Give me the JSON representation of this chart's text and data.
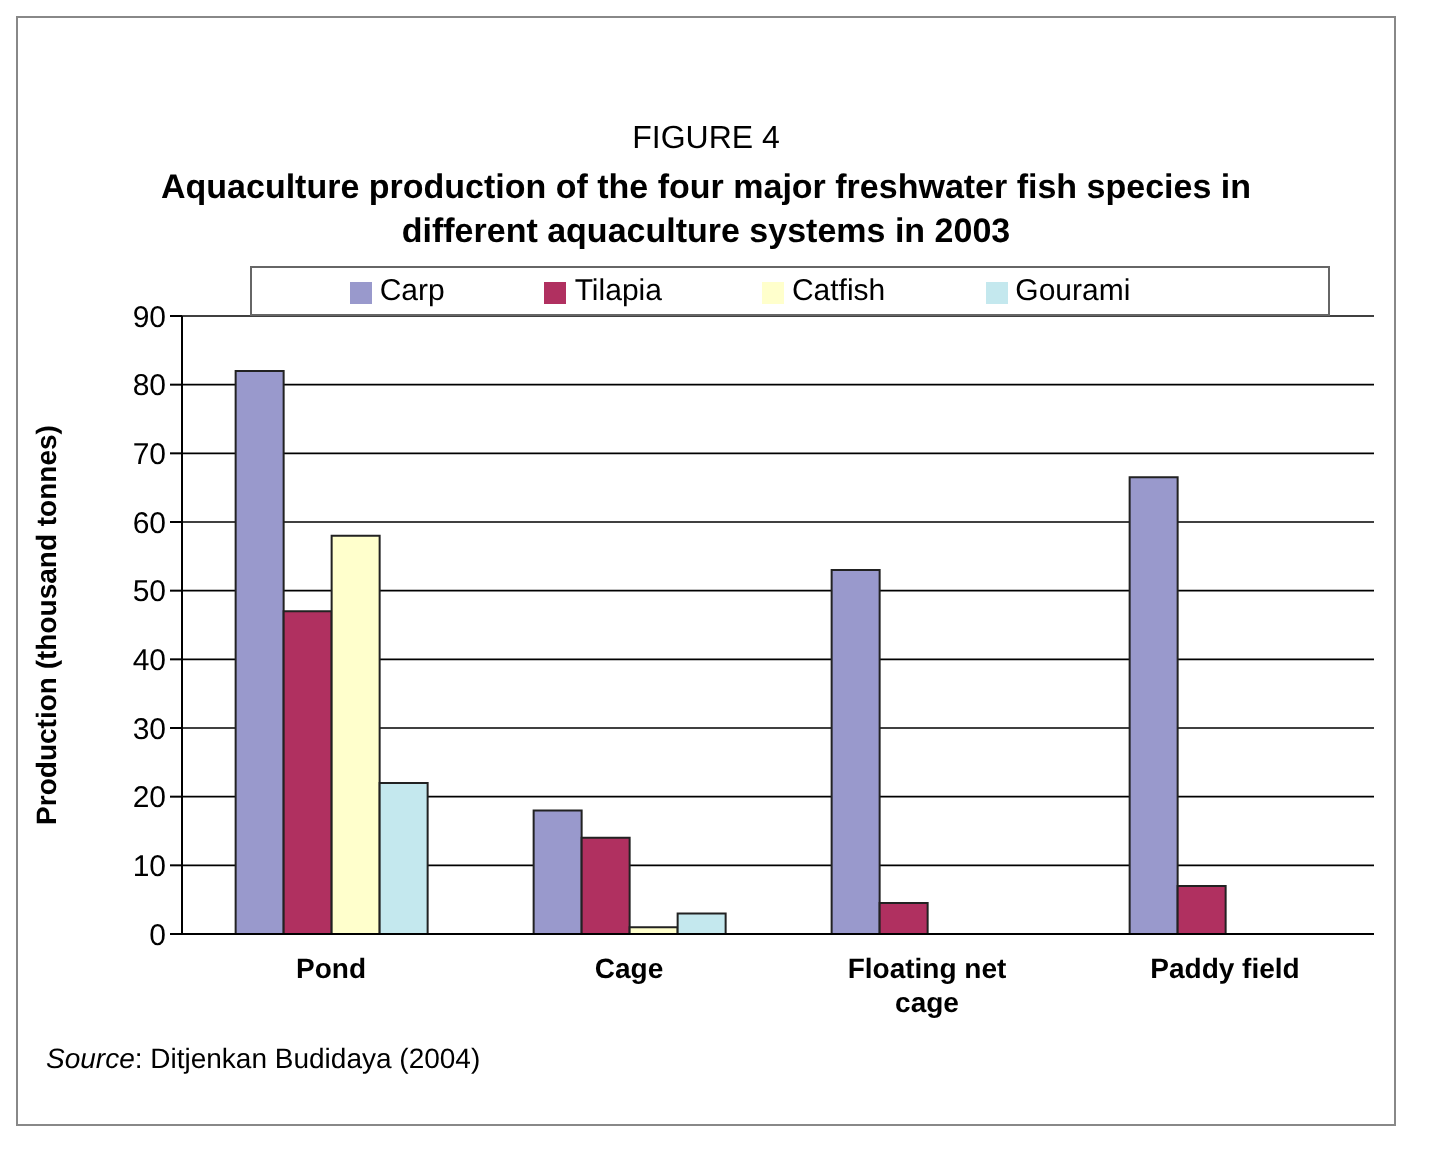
{
  "chart_data": {
    "type": "bar",
    "title": "FIGURE 4",
    "subtitle": "Aquaculture production of the four major freshwater fish species in different aquaculture systems in 2003",
    "ylabel": "Production (thousand tonnes)",
    "categories": [
      "Pond",
      "Cage",
      "Floating net cage",
      "Paddy field"
    ],
    "series": [
      {
        "name": "Carp",
        "color": "#9999cc",
        "values": [
          82,
          18,
          53,
          66.5
        ]
      },
      {
        "name": "Tilapia",
        "color": "#b03060",
        "values": [
          47,
          14,
          4.5,
          7
        ]
      },
      {
        "name": "Catfish",
        "color": "#ffffcc",
        "values": [
          58,
          1,
          0,
          0
        ]
      },
      {
        "name": "Gourami",
        "color": "#c4e8ee",
        "values": [
          22,
          3,
          0,
          0
        ]
      }
    ],
    "ylim": [
      0,
      90
    ],
    "yticks": [
      0,
      10,
      20,
      30,
      40,
      50,
      60,
      70,
      80,
      90
    ],
    "grid": "y",
    "legend": "top",
    "annotations": [
      "Source: Ditjenkan Budidaya (2004)"
    ]
  }
}
